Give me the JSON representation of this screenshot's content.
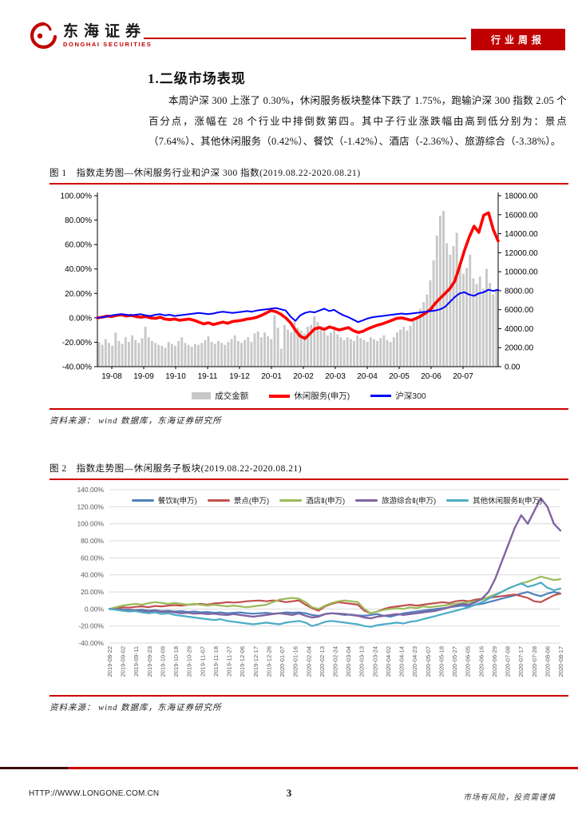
{
  "accent_red": "#c00000",
  "header": {
    "logo_cn": "东海证券",
    "logo_en": "DONGHAI SECURITIES",
    "badge": "行业周报"
  },
  "section": {
    "title": "1.二级市场表现",
    "paragraph": "本周沪深 300 上涨了 0.30%，休闲服务板块整体下跌了 1.75%，跑输沪深 300 指数 2.05 个百分点，涨幅在 28 个行业中排倒数第四。其中子行业涨跌幅由高到低分别为：景点（7.64%）、其他休闲服务（0.42%）、餐饮（-1.42%）、酒店（-2.36%）、旅游综合（-3.38%）。"
  },
  "figure1": {
    "caption": "图 1　指数走势图—休闲服务行业和沪深 300 指数(2019.08.22-2020.08.21)",
    "source": "资料来源：  wind 数据库，东海证券研究所"
  },
  "figure2": {
    "caption": "图 2　指数走势图—休闲服务子板块(2019.08.22-2020.08.21)",
    "source": "资料来源：  wind 数据库，东海证券研究所"
  },
  "footer": {
    "url": "HTTP://WWW.LONGONE.COM.CN",
    "page": "3",
    "disclaimer": "市场有风险，投资需谨慎"
  },
  "chart_data": [
    {
      "type": "bar",
      "title": "指数走势图—休闲服务行业和沪深300指数(2019.08.22-2020.08.21)",
      "grid": false,
      "legend_position": "bottom",
      "x_tick_labels": [
        "19-08",
        "19-09",
        "19-10",
        "19-11",
        "19-12",
        "20-01",
        "20-02",
        "20-03",
        "20-04",
        "20-05",
        "20-06",
        "20-07"
      ],
      "left_axis": {
        "min": -40,
        "max": 100,
        "tick_labels": [
          "100.00%",
          "80.00%",
          "60.00%",
          "40.00%",
          "20.00%",
          "0.00%",
          "-20.00%",
          "-40.00%"
        ]
      },
      "right_axis": {
        "min": 0,
        "max": 18000,
        "tick_labels": [
          "18000.00",
          "16000.00",
          "14000.00",
          "12000.00",
          "10000.00",
          "8000.00",
          "6000.00",
          "4000.00",
          "2000.00",
          "0.00"
        ]
      },
      "bars": {
        "name": "成交金额",
        "color": "#c8c8c8",
        "axis": "right",
        "values": [
          2600,
          2300,
          2900,
          2500,
          2200,
          3600,
          2700,
          2400,
          3100,
          2600,
          3300,
          2800,
          2500,
          3000,
          4200,
          3100,
          2700,
          2500,
          2300,
          2200,
          2000,
          2600,
          2400,
          2200,
          2700,
          3100,
          2500,
          2300,
          2100,
          2400,
          2300,
          2500,
          2800,
          3200,
          2600,
          2400,
          2700,
          2500,
          2300,
          2600,
          2900,
          3300,
          2700,
          2500,
          2800,
          3100,
          2600,
          3500,
          3700,
          3100,
          3600,
          3200,
          2900,
          5400,
          4100,
          1900,
          4400,
          3900,
          3600,
          4700,
          4100,
          3800,
          3500,
          4200,
          4400,
          5300,
          4700,
          4100,
          3700,
          3300,
          3600,
          3900,
          3400,
          3100,
          2800,
          3100,
          2900,
          2700,
          3300,
          3000,
          2800,
          2600,
          3100,
          2900,
          2700,
          3000,
          3300,
          2800,
          2600,
          3100,
          3600,
          3900,
          4200,
          3800,
          4300,
          4800,
          5300,
          6100,
          6800,
          7600,
          9100,
          11200,
          13800,
          15900,
          16400,
          13000,
          11800,
          12700,
          14100,
          10800,
          9800,
          10400,
          11800,
          9300,
          8700,
          9500,
          8200,
          10300,
          8800,
          7600,
          8200
        ]
      },
      "series": [
        {
          "name": "休闲服务(申万)",
          "color": "#ff0000",
          "width": 3.6,
          "axis": "left",
          "values": [
            0,
            0.5,
            1.5,
            1,
            2,
            2.5,
            1.5,
            2,
            1,
            0.5,
            1,
            0,
            -0.5,
            0.5,
            -1,
            -1.5,
            -1,
            -2,
            -1.5,
            -1,
            -2,
            -3.5,
            -5,
            -4,
            -5.5,
            -4.5,
            -3.5,
            -4.5,
            -3,
            -2.5,
            -2,
            -1,
            -0.5,
            0.5,
            2,
            4,
            6,
            5,
            3,
            0,
            -4,
            -10,
            -15,
            -17,
            -13,
            -9,
            -8,
            -9.5,
            -7.5,
            -8.5,
            -10,
            -9,
            -8,
            -10.5,
            -12,
            -11,
            -9,
            -7.5,
            -6,
            -5,
            -3.5,
            -2,
            -0.5,
            0,
            -1,
            -2,
            -0.5,
            1.5,
            4,
            7,
            12,
            16,
            20,
            24,
            30,
            42,
            55,
            66,
            75,
            70,
            84,
            86,
            72,
            63
          ]
        },
        {
          "name": "沪深300",
          "color": "#0000ff",
          "width": 2,
          "axis": "left",
          "values": [
            0,
            0.5,
            1,
            2,
            2.5,
            3,
            2.5,
            2,
            2.5,
            3,
            2,
            1.5,
            2.5,
            3,
            2,
            2.5,
            1.5,
            2,
            2.5,
            3,
            3.5,
            4,
            3.5,
            3,
            3.5,
            4.5,
            5,
            4.5,
            4,
            4.5,
            5,
            5.5,
            5,
            6,
            6.5,
            7,
            7.5,
            8,
            7,
            6,
            1,
            -2.5,
            2,
            4,
            5,
            4.5,
            6,
            7.5,
            5.5,
            6.5,
            4,
            2,
            0.5,
            -1.5,
            -3.5,
            -2,
            -0.5,
            0.5,
            1,
            1.5,
            2,
            2.5,
            3,
            3.5,
            3,
            3.5,
            4,
            4.5,
            5,
            5.5,
            6,
            7,
            9,
            13,
            17,
            20,
            21,
            19,
            18,
            20,
            21,
            23,
            22,
            23
          ]
        }
      ]
    },
    {
      "type": "line",
      "title": "指数走势图—休闲服务子板块(2019.08.22-2020.08.21)",
      "grid": true,
      "legend_position": "top",
      "y_axis": {
        "min": -40,
        "max": 140,
        "tick_labels": [
          "140.00%",
          "120.00%",
          "100.00%",
          "80.00%",
          "60.00%",
          "40.00%",
          "20.00%",
          "0.00%",
          "-20.00%",
          "-40.00%"
        ]
      },
      "x_tick_labels": [
        "2019-08-22",
        "2019-09-02",
        "2019-09-11",
        "2019-09-23",
        "2019-10-09",
        "2019-10-18",
        "2019-10-29",
        "2019-11-07",
        "2019-11-18",
        "2019-11-27",
        "2019-12-06",
        "2019-12-17",
        "2019-12-26",
        "2020-01-07",
        "2020-01-16",
        "2020-02-04",
        "2020-02-13",
        "2020-02-24",
        "2020-03-04",
        "2020-03-13",
        "2020-03-24",
        "2020-04-02",
        "2020-04-14",
        "2020-04-23",
        "2020-05-07",
        "2020-05-18",
        "2020-05-27",
        "2020-06-05",
        "2020-06-16",
        "2020-06-29",
        "2020-07-08",
        "2020-07-17",
        "2020-07-28",
        "2020-08-06",
        "2020-08-17"
      ],
      "series": [
        {
          "name": "餐饮Ⅱ(申万)",
          "color": "#4f81bd",
          "width": 2.2,
          "values": [
            0,
            0.5,
            -0.5,
            -1,
            -1.5,
            -1,
            -2,
            -1.5,
            -2.5,
            -2,
            -3,
            -2.5,
            -3.5,
            -3,
            -4,
            -3.5,
            -4.5,
            -4,
            -5,
            -4.5,
            -4,
            -5,
            -5.5,
            -5,
            -4.5,
            -5.5,
            -5,
            -4,
            -4.5,
            -4,
            -5,
            -7,
            -8,
            -6,
            -5,
            -6,
            -7,
            -6.5,
            -7.5,
            -8,
            -7,
            -6,
            -8,
            -9,
            -7,
            -5,
            -4,
            -3,
            -2,
            -1,
            0,
            1,
            2,
            3,
            4,
            3,
            5,
            6,
            8,
            10,
            12,
            14,
            16,
            18,
            20,
            17,
            15,
            18,
            20,
            18
          ]
        },
        {
          "name": "景点(申万)",
          "color": "#c0504d",
          "width": 2.2,
          "values": [
            0,
            1,
            2,
            1.5,
            2.5,
            3,
            2,
            3.5,
            3,
            4,
            4.5,
            4,
            5,
            5.5,
            6,
            5,
            6.5,
            7,
            8,
            7.5,
            8,
            9,
            9.5,
            10,
            9,
            10,
            9.5,
            8,
            9,
            10,
            5,
            1,
            -2,
            3,
            6,
            8,
            7,
            6,
            5,
            -2,
            -5,
            -3,
            0,
            2,
            3,
            4,
            5,
            4,
            5,
            6,
            7,
            8,
            7,
            9,
            10,
            9,
            11,
            12,
            13,
            14,
            15,
            16,
            17,
            15,
            13,
            9,
            8,
            12,
            16,
            18
          ]
        },
        {
          "name": "酒店Ⅱ(申万)",
          "color": "#9bbb59",
          "width": 2.2,
          "values": [
            0,
            2,
            4,
            5,
            6,
            5,
            7,
            8,
            7,
            6,
            7,
            6,
            5,
            6,
            5,
            4,
            5,
            4,
            3,
            4,
            3,
            2,
            3,
            4,
            5,
            8,
            11,
            12,
            13,
            12,
            8,
            2,
            0,
            4,
            7,
            9,
            10,
            9,
            8,
            0,
            -5,
            -3,
            -1,
            0,
            1,
            0,
            2,
            1,
            3,
            2,
            3,
            4,
            5,
            6,
            7,
            8,
            9,
            11,
            14,
            17,
            20,
            24,
            27,
            30,
            32,
            35,
            38,
            36,
            34,
            35
          ]
        },
        {
          "name": "旅游综合Ⅱ(申万)",
          "color": "#8064a2",
          "width": 2.4,
          "values": [
            0,
            -0.5,
            -1,
            -2,
            -1.5,
            -2.5,
            -3,
            -2,
            -3.5,
            -3,
            -4,
            -5,
            -4.5,
            -5.5,
            -5,
            -6,
            -5.5,
            -6.5,
            -7,
            -6,
            -7,
            -8,
            -9,
            -8,
            -7,
            -6,
            -5,
            -6,
            -7,
            -5,
            -8,
            -10,
            -9,
            -6,
            -5,
            -5.5,
            -6,
            -7,
            -8,
            -10,
            -11,
            -9,
            -8,
            -7,
            -6,
            -7,
            -6,
            -5,
            -4,
            -3,
            -2,
            0,
            2,
            4,
            6,
            5,
            8,
            12,
            20,
            35,
            55,
            75,
            95,
            110,
            100,
            115,
            130,
            120,
            100,
            92
          ]
        },
        {
          "name": "其他休闲服务Ⅱ(申万)",
          "color": "#4bacc6",
          "width": 2.2,
          "values": [
            0,
            -1,
            -2,
            -3,
            -2.5,
            -4,
            -5,
            -4,
            -6,
            -5,
            -7,
            -8,
            -9,
            -10,
            -11,
            -12,
            -13,
            -12,
            -14,
            -15,
            -16,
            -17,
            -18,
            -17,
            -16,
            -17,
            -18,
            -16,
            -15,
            -14,
            -16,
            -20,
            -18,
            -15,
            -14,
            -15,
            -16,
            -17,
            -18,
            -20,
            -21,
            -19,
            -18,
            -17,
            -16,
            -17,
            -15,
            -14,
            -12,
            -10,
            -8,
            -6,
            -4,
            -2,
            0,
            2,
            5,
            8,
            12,
            16,
            20,
            24,
            27,
            30,
            26,
            28,
            31,
            25,
            22,
            24
          ]
        }
      ]
    }
  ]
}
